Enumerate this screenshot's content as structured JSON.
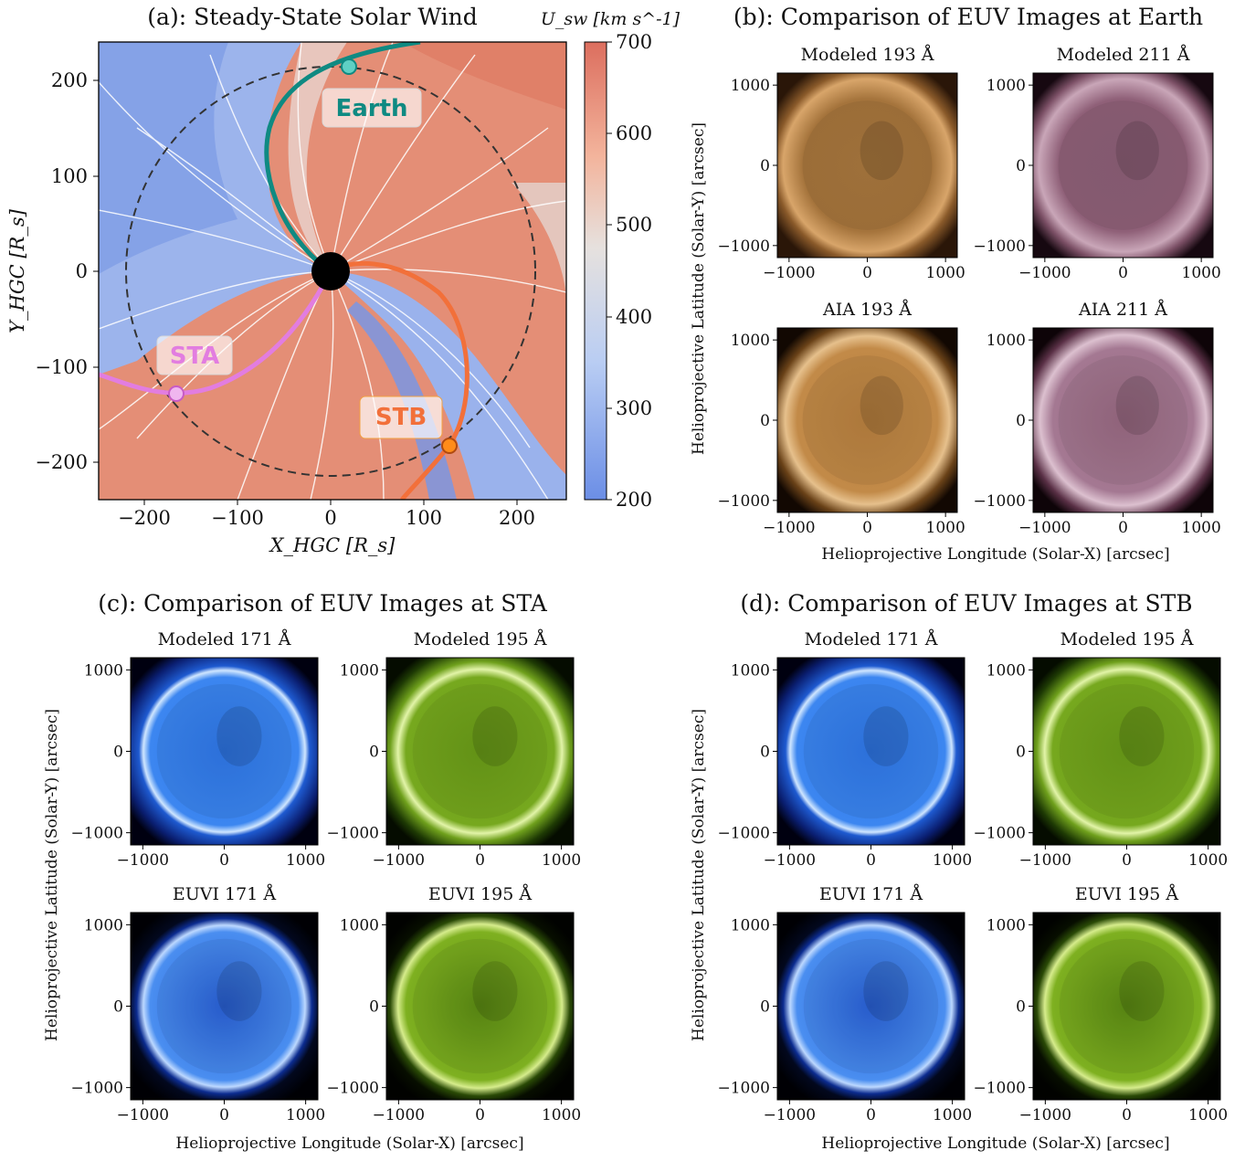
{
  "panel_a": {
    "title": "(a): Steady-State Solar Wind",
    "cbar_label": "U_sw [km s^-1]",
    "cbar_ticks": [
      "700",
      "600",
      "500",
      "400",
      "300",
      "200"
    ],
    "x_ticks": [
      "−200",
      "−100",
      "0",
      "100",
      "200"
    ],
    "y_ticks": [
      "200",
      "100",
      "0",
      "−100",
      "−200"
    ],
    "xlabel": "X_HGC [R_s]",
    "ylabel": "Y_HGC [R_s]",
    "labels": {
      "earth": "Earth",
      "sta": "STA",
      "stb": "STB"
    }
  },
  "panel_b": {
    "title": "(b): Comparison of EUV Images at Earth",
    "subtitles": [
      "Modeled 193 Å",
      "Modeled 211 Å",
      "AIA 193 Å",
      "AIA 211 Å"
    ],
    "xlabel": "Helioprojective Longitude (Solar-X) [arcsec]",
    "ylabel": "Helioprojective Latitude (Solar-Y) [arcsec]"
  },
  "panel_c": {
    "title": "(c): Comparison of EUV Images at STA",
    "subtitles": [
      "Modeled 171 Å",
      "Modeled 195 Å",
      "EUVI 171 Å",
      "EUVI 195 Å"
    ],
    "xlabel": "Helioprojective Longitude (Solar-X) [arcsec]",
    "ylabel": "Helioprojective Latitude (Solar-Y) [arcsec]"
  },
  "panel_d": {
    "title": "(d): Comparison of EUV Images at STB",
    "subtitles": [
      "Modeled 171 Å",
      "Modeled 195 Å",
      "EUVI 171 Å",
      "EUVI 195 Å"
    ],
    "xlabel": "Helioprojective Longitude (Solar-X) [arcsec]",
    "ylabel": "Helioprojective Latitude (Solar-Y) [arcsec]"
  },
  "img_ticks": {
    "x": [
      "−1000",
      "0",
      "1000"
    ],
    "y": [
      "1000",
      "0",
      "−1000"
    ]
  },
  "colors": {
    "fast_wind": "#e07a64",
    "slow_wind": "#7390e0",
    "earth": "#0f8a82",
    "sta": "#e27de0",
    "stb": "#f2703a",
    "aia193": "#b07a3c",
    "aia211": "#93647c",
    "euvi171": "#3c7ee8",
    "euvi195": "#7eb020"
  }
}
